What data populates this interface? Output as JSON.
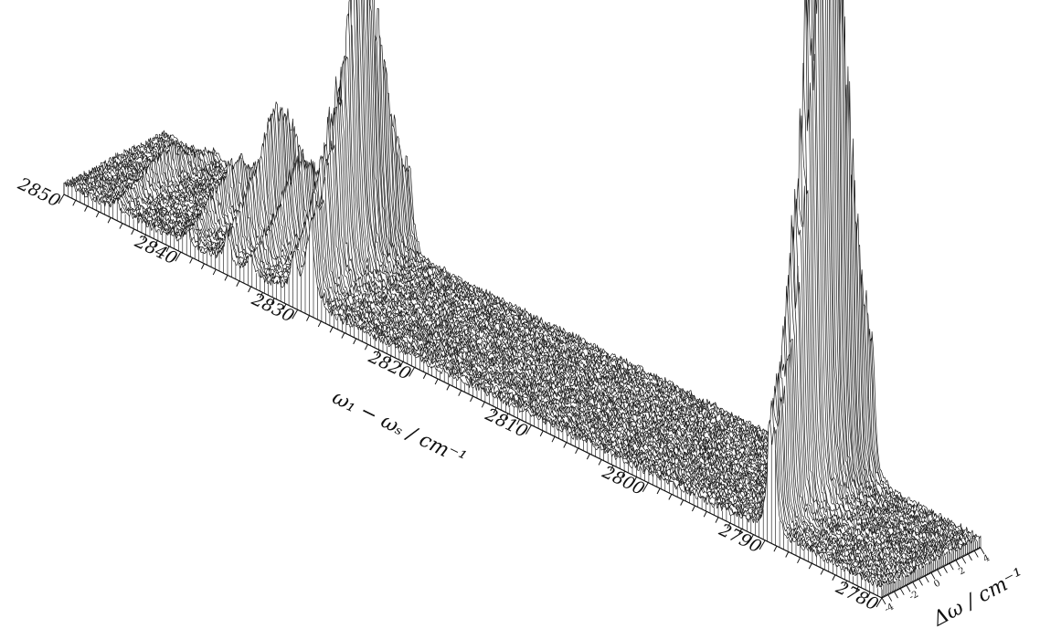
{
  "chart_data": {
    "type": "surface-3d",
    "title": "",
    "xlabel": "ω₁ − ωₛ / cm⁻¹",
    "ylabel": "Δω / cm⁻¹",
    "x_ticks": [
      "2850",
      "2840",
      "2830",
      "2820",
      "2810",
      "2800",
      "2790",
      "2780"
    ],
    "y_ticks": [
      "-4",
      "-2",
      "0",
      "2",
      "4"
    ],
    "x_range": [
      2780,
      2850
    ],
    "y_range": [
      -4,
      4
    ],
    "peaks": [
      {
        "x": 2845.5,
        "y": 0.0,
        "height": 0.06
      },
      {
        "x": 2839.5,
        "y": 0.0,
        "height": 0.1
      },
      {
        "x": 2836.0,
        "y": 0.0,
        "height": 0.22
      },
      {
        "x": 2834.0,
        "y": 0.0,
        "height": 0.14
      },
      {
        "x": 2830.3,
        "y": 0.0,
        "height": 0.3
      },
      {
        "x": 2829.2,
        "y": 0.5,
        "height": 0.25
      },
      {
        "x": 2828.8,
        "y": 0.0,
        "height": 0.43
      },
      {
        "x": 2789.6,
        "y": 0.0,
        "height": 1.0
      },
      {
        "x": 2789.2,
        "y": 0.6,
        "height": 0.88
      }
    ]
  }
}
